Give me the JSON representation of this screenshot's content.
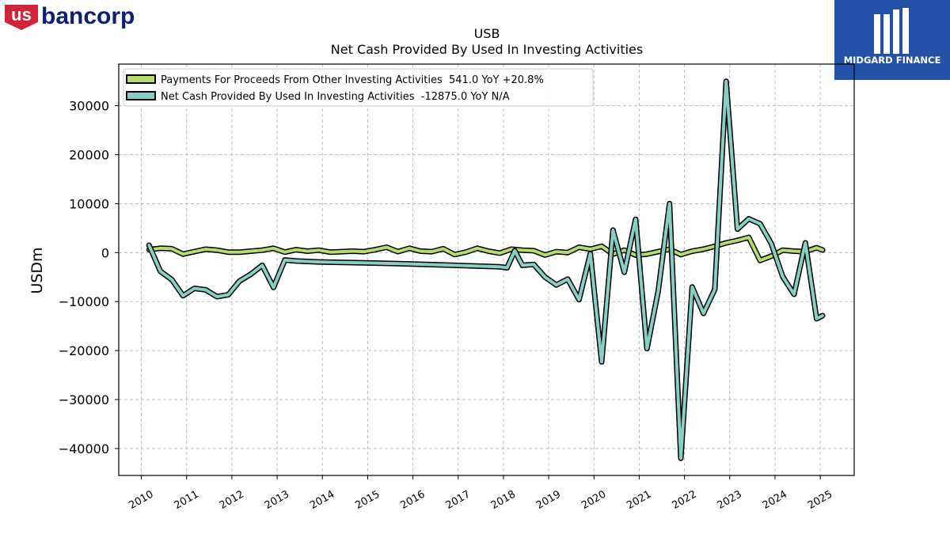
{
  "company_logo": {
    "text": "usbancorp",
    "color_red": "#d0243b",
    "color_blue": "#0c2074"
  },
  "brand_logo": {
    "text": "MIDGARD FINANCE",
    "background": "#2452a6"
  },
  "chart_data": {
    "type": "line",
    "title": "USB",
    "subtitle": "Net Cash Provided By Used In Investing Activities",
    "ylabel": "USDm",
    "xlabel": "",
    "ylim": [
      -45500,
      38500
    ],
    "xlim": [
      2009.5,
      2025.75
    ],
    "x_ticks": [
      "2010",
      "2011",
      "2012",
      "2013",
      "2014",
      "2015",
      "2016",
      "2017",
      "2018",
      "2019",
      "2020",
      "2021",
      "2022",
      "2023",
      "2024",
      "2025"
    ],
    "y_ticks": [
      "30000",
      "20000",
      "10000",
      "0",
      "−10000",
      "−20000",
      "−30000",
      "−40000"
    ],
    "y_tick_values": [
      30000,
      20000,
      10000,
      0,
      -10000,
      -20000,
      -30000,
      -40000
    ],
    "grid": true,
    "legend_position": "top-left",
    "series": [
      {
        "name": "Payments For Proceeds From Other Investing Activities",
        "legend_label": "Payments For Proceeds From Other Investing Activities  541.0 YoY +20.8%",
        "color": "#b5dd6e",
        "points": [
          [
            2010.17,
            600
          ],
          [
            2010.42,
            900
          ],
          [
            2010.67,
            800
          ],
          [
            2010.92,
            -300
          ],
          [
            2011.17,
            200
          ],
          [
            2011.42,
            700
          ],
          [
            2011.67,
            500
          ],
          [
            2011.92,
            100
          ],
          [
            2012.17,
            100
          ],
          [
            2012.42,
            300
          ],
          [
            2012.67,
            500
          ],
          [
            2012.92,
            900
          ],
          [
            2013.17,
            100
          ],
          [
            2013.42,
            600
          ],
          [
            2013.67,
            300
          ],
          [
            2013.92,
            500
          ],
          [
            2014.17,
            100
          ],
          [
            2014.42,
            200
          ],
          [
            2014.67,
            300
          ],
          [
            2014.92,
            200
          ],
          [
            2015.17,
            600
          ],
          [
            2015.42,
            1100
          ],
          [
            2015.67,
            200
          ],
          [
            2015.92,
            900
          ],
          [
            2016.17,
            300
          ],
          [
            2016.42,
            200
          ],
          [
            2016.67,
            800
          ],
          [
            2016.92,
            -400
          ],
          [
            2017.17,
            100
          ],
          [
            2017.42,
            900
          ],
          [
            2017.67,
            300
          ],
          [
            2017.92,
            -100
          ],
          [
            2018.17,
            700
          ],
          [
            2018.42,
            500
          ],
          [
            2018.67,
            400
          ],
          [
            2018.92,
            -500
          ],
          [
            2019.17,
            200
          ],
          [
            2019.42,
            0
          ],
          [
            2019.67,
            1100
          ],
          [
            2019.92,
            700
          ],
          [
            2020.17,
            1300
          ],
          [
            2020.42,
            -300
          ],
          [
            2020.67,
            500
          ],
          [
            2020.92,
            -500
          ],
          [
            2021.17,
            -300
          ],
          [
            2021.42,
            200
          ],
          [
            2021.67,
            700
          ],
          [
            2021.92,
            -400
          ],
          [
            2022.17,
            300
          ],
          [
            2022.42,
            700
          ],
          [
            2022.67,
            1300
          ],
          [
            2022.92,
            2000
          ],
          [
            2023.17,
            2500
          ],
          [
            2023.42,
            3100
          ],
          [
            2023.67,
            -1600
          ],
          [
            2023.92,
            -700
          ],
          [
            2024.17,
            500
          ],
          [
            2024.42,
            300
          ],
          [
            2024.67,
            200
          ],
          [
            2024.92,
            1000
          ],
          [
            2025.05,
            541
          ]
        ]
      },
      {
        "name": "Net Cash Provided By Used In Investing Activities",
        "legend_label": "Net Cash Provided By Used In Investing Activities  -12875.0 YoY N/A",
        "color": "#86cfc4",
        "points": [
          [
            2010.17,
            1500
          ],
          [
            2010.42,
            -3800
          ],
          [
            2010.67,
            -5500
          ],
          [
            2010.92,
            -8800
          ],
          [
            2011.17,
            -7300
          ],
          [
            2011.42,
            -7600
          ],
          [
            2011.67,
            -9000
          ],
          [
            2011.92,
            -8600
          ],
          [
            2012.17,
            -5800
          ],
          [
            2012.42,
            -4400
          ],
          [
            2012.67,
            -2600
          ],
          [
            2012.92,
            -7100
          ],
          [
            2013.17,
            -1500
          ],
          [
            2013.42,
            -1700
          ],
          [
            2013.67,
            -1800
          ],
          [
            2013.92,
            -1900
          ],
          [
            2014.92,
            -2100
          ],
          [
            2015.92,
            -2300
          ],
          [
            2016.92,
            -2600
          ],
          [
            2017.92,
            -2900
          ],
          [
            2018.08,
            -3100
          ],
          [
            2018.25,
            400
          ],
          [
            2018.42,
            -2600
          ],
          [
            2018.67,
            -2400
          ],
          [
            2018.92,
            -5000
          ],
          [
            2019.17,
            -6600
          ],
          [
            2019.42,
            -5400
          ],
          [
            2019.67,
            -9600
          ],
          [
            2019.92,
            -200
          ],
          [
            2020.17,
            -22300
          ],
          [
            2020.42,
            4600
          ],
          [
            2020.67,
            -4000
          ],
          [
            2020.92,
            6800
          ],
          [
            2021.17,
            -19600
          ],
          [
            2021.42,
            -7800
          ],
          [
            2021.67,
            10000
          ],
          [
            2021.92,
            -42000
          ],
          [
            2022.17,
            -7000
          ],
          [
            2022.42,
            -12400
          ],
          [
            2022.67,
            -7500
          ],
          [
            2022.92,
            35000
          ],
          [
            2023.17,
            4800
          ],
          [
            2023.42,
            6900
          ],
          [
            2023.67,
            5900
          ],
          [
            2023.92,
            1800
          ],
          [
            2024.17,
            -4900
          ],
          [
            2024.42,
            -8500
          ],
          [
            2024.67,
            2000
          ],
          [
            2024.92,
            -13500
          ],
          [
            2025.05,
            -12875
          ]
        ]
      }
    ]
  }
}
